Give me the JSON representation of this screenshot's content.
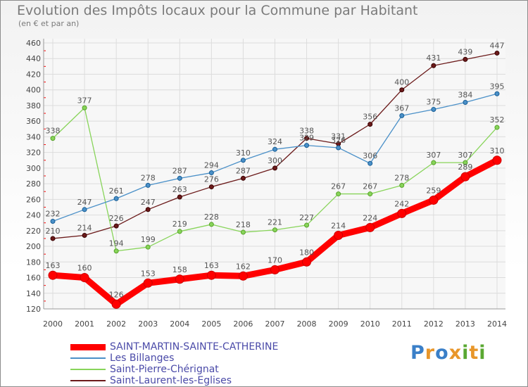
{
  "page": {
    "title": "Evolution des Impôts locaux pour la Commune par Habitant",
    "subtitle": "(en € et par an)"
  },
  "brand": {
    "letters": [
      {
        "ch": "P",
        "color": "#3a7fc8"
      },
      {
        "ch": "r",
        "color": "#e8962a"
      },
      {
        "ch": "o",
        "color": "#3a7fc8"
      },
      {
        "ch": "x",
        "color": "#e8962a"
      },
      {
        "ch": "i",
        "color": "#5aa832"
      },
      {
        "ch": "t",
        "color": "#e8962a"
      },
      {
        "ch": "i",
        "color": "#5aa832"
      }
    ]
  },
  "chart_data": {
    "type": "line",
    "title": "Evolution des Impôts locaux pour la Commune par Habitant",
    "subtitle": "(en € et par an)",
    "xlabel": "",
    "ylabel": "",
    "x": [
      "2000",
      "2001",
      "2002",
      "2003",
      "2004",
      "2005",
      "2006",
      "2007",
      "2008",
      "2009",
      "2010",
      "2011",
      "2012",
      "2013",
      "2014"
    ],
    "ylim": [
      120,
      460
    ],
    "yticks": [
      120,
      140,
      160,
      180,
      200,
      220,
      240,
      260,
      280,
      300,
      320,
      340,
      360,
      380,
      400,
      420,
      440,
      460
    ],
    "grid": true,
    "legend_position": "bottom-left",
    "series": [
      {
        "name": "SAINT-MARTIN-SAINTE-CATHERINE",
        "color": "#ff0000",
        "emphasis": true,
        "values": [
          163,
          160,
          126,
          153,
          158,
          163,
          162,
          170,
          180,
          214,
          224,
          242,
          259,
          289,
          310
        ]
      },
      {
        "name": "Les Billanges",
        "color": "#4a90c8",
        "values": [
          232,
          247,
          261,
          278,
          287,
          294,
          310,
          324,
          329,
          326,
          306,
          367,
          375,
          384,
          395
        ]
      },
      {
        "name": "Saint-Pierre-Chérignat",
        "color": "#88d45a",
        "values": [
          338,
          377,
          194,
          199,
          219,
          228,
          218,
          221,
          227,
          267,
          267,
          278,
          307,
          307,
          352
        ]
      },
      {
        "name": "Saint-Laurent-les-Eglises",
        "color": "#6b1a1a",
        "values": [
          210,
          214,
          226,
          247,
          263,
          276,
          287,
          300,
          338,
          331,
          356,
          400,
          431,
          439,
          447
        ]
      }
    ]
  }
}
